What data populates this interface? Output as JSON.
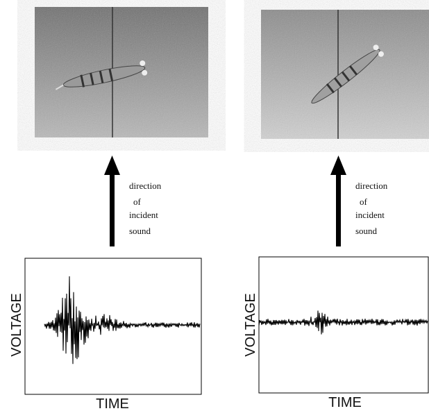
{
  "panels": [
    {
      "caption": [
        "direction",
        "of",
        "incident",
        "sound"
      ],
      "y_axis": "VOLTAGE",
      "x_axis": "TIME"
    },
    {
      "caption": [
        "direction",
        "of",
        "incident",
        "sound"
      ],
      "y_axis": "VOLTAGE",
      "x_axis": "TIME"
    }
  ]
}
